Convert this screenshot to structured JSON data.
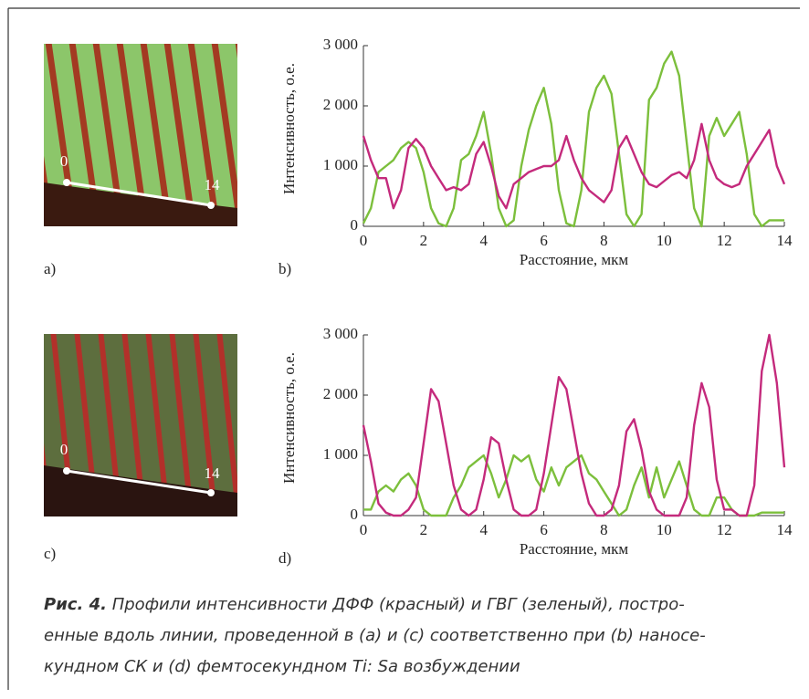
{
  "chart_data": [
    {
      "type": "line",
      "panel_label": "b)",
      "x_label": "Расстояние, мкм",
      "y_label": "Интенсивность, о.е.",
      "xlim": [
        0,
        14
      ],
      "ylim": [
        0,
        3000
      ],
      "xticks": [
        0,
        2,
        4,
        6,
        8,
        10,
        12,
        14
      ],
      "yticks": [
        0,
        {
          "value": 1000,
          "label": "1 000"
        },
        {
          "value": 2000,
          "label": "2 000"
        },
        {
          "value": 3000,
          "label": "3 000"
        }
      ],
      "x": [
        0,
        0.25,
        0.5,
        0.75,
        1,
        1.25,
        1.5,
        1.75,
        2,
        2.25,
        2.5,
        2.75,
        3,
        3.25,
        3.5,
        3.75,
        4,
        4.25,
        4.5,
        4.75,
        5,
        5.25,
        5.5,
        5.75,
        6,
        6.25,
        6.5,
        6.75,
        7,
        7.25,
        7.5,
        7.75,
        8,
        8.25,
        8.5,
        8.75,
        9,
        9.25,
        9.5,
        9.75,
        10,
        10.25,
        10.5,
        10.75,
        11,
        11.25,
        11.5,
        11.75,
        12,
        12.25,
        12.5,
        12.75,
        13,
        13.25,
        13.5,
        13.75,
        14
      ],
      "series": [
        {
          "color": "#7cbf3c",
          "values": [
            50,
            300,
            900,
            1000,
            1100,
            1300,
            1400,
            1300,
            900,
            300,
            50,
            0,
            300,
            1100,
            1200,
            1500,
            1900,
            1200,
            300,
            0,
            100,
            1000,
            1600,
            2000,
            2300,
            1700,
            600,
            50,
            0,
            600,
            1900,
            2300,
            2500,
            2200,
            1200,
            200,
            0,
            200,
            2100,
            2300,
            2700,
            2900,
            2500,
            1400,
            300,
            0,
            1500,
            1800,
            1500,
            1700,
            1900,
            1200,
            200,
            0,
            100,
            100,
            100
          ]
        },
        {
          "color": "#c42a7c",
          "values": [
            1500,
            1100,
            800,
            800,
            300,
            600,
            1300,
            1450,
            1300,
            1000,
            800,
            600,
            650,
            600,
            700,
            1200,
            1400,
            1000,
            500,
            300,
            700,
            800,
            900,
            950,
            1000,
            1000,
            1100,
            1500,
            1100,
            800,
            600,
            500,
            400,
            600,
            1300,
            1500,
            1200,
            900,
            700,
            650,
            750,
            850,
            900,
            800,
            1100,
            1700,
            1100,
            800,
            700,
            650,
            700,
            1000,
            1200,
            1400,
            1600,
            1000,
            700
          ]
        }
      ]
    },
    {
      "type": "line",
      "panel_label": "d)",
      "x_label": "Расстояние, мкм",
      "y_label": "Интенсивность, о.е.",
      "xlim": [
        0,
        14
      ],
      "ylim": [
        0,
        3000
      ],
      "xticks": [
        0,
        2,
        4,
        6,
        8,
        10,
        12,
        14
      ],
      "yticks": [
        0,
        {
          "value": 1000,
          "label": "1 000"
        },
        {
          "value": 2000,
          "label": "2 000"
        },
        {
          "value": 3000,
          "label": "3 000"
        }
      ],
      "x": [
        0,
        0.25,
        0.5,
        0.75,
        1,
        1.25,
        1.5,
        1.75,
        2,
        2.25,
        2.5,
        2.75,
        3,
        3.25,
        3.5,
        3.75,
        4,
        4.25,
        4.5,
        4.75,
        5,
        5.25,
        5.5,
        5.75,
        6,
        6.25,
        6.5,
        6.75,
        7,
        7.25,
        7.5,
        7.75,
        8,
        8.25,
        8.5,
        8.75,
        9,
        9.25,
        9.5,
        9.75,
        10,
        10.25,
        10.5,
        10.75,
        11,
        11.25,
        11.5,
        11.75,
        12,
        12.25,
        12.5,
        12.75,
        13,
        13.25,
        13.5,
        13.75,
        14
      ],
      "series": [
        {
          "color": "#7cbf3c",
          "values": [
            100,
            100,
            400,
            500,
            400,
            600,
            700,
            500,
            100,
            0,
            0,
            0,
            300,
            500,
            800,
            900,
            1000,
            700,
            300,
            600,
            1000,
            900,
            1000,
            600,
            400,
            800,
            500,
            800,
            900,
            1000,
            700,
            600,
            400,
            200,
            0,
            100,
            500,
            800,
            300,
            800,
            300,
            600,
            900,
            500,
            100,
            0,
            0,
            300,
            300,
            100,
            0,
            0,
            0,
            50,
            50,
            50,
            50
          ]
        },
        {
          "color": "#c42a7c",
          "values": [
            1500,
            900,
            200,
            50,
            0,
            0,
            100,
            300,
            1200,
            2100,
            1900,
            1200,
            500,
            100,
            0,
            100,
            600,
            1300,
            1200,
            600,
            100,
            0,
            0,
            100,
            700,
            1500,
            2300,
            2100,
            1400,
            700,
            200,
            0,
            0,
            100,
            500,
            1400,
            1600,
            1100,
            400,
            100,
            0,
            0,
            0,
            300,
            1500,
            2200,
            1800,
            600,
            100,
            100,
            0,
            0,
            500,
            2400,
            3000,
            2200,
            800
          ]
        }
      ]
    }
  ],
  "images": [
    {
      "label": "a)",
      "markers": [
        "0",
        "14"
      ]
    },
    {
      "label": "c)",
      "markers": [
        "0",
        "14"
      ]
    }
  ],
  "caption": {
    "label": "Рис. 4.",
    "lines": [
      "Профили интенсивности ДФФ (красный) и ГВГ (зеленый), постро-",
      "енные вдоль линии, проведенной в (a) и (c) соответственно при (b) наносе-",
      "кундном СК и (d) фемтосекундном Ti: Sa возбуждении"
    ]
  }
}
